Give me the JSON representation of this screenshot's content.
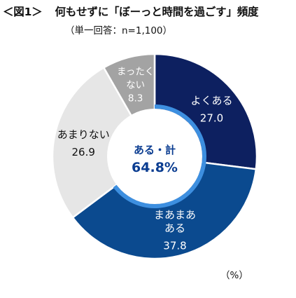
{
  "chart_data": {
    "type": "pie",
    "style": "donut",
    "title_figure": "＜図1＞",
    "title_main": "何もせずに「ぼーっと時間を過ごす」頻度",
    "subtitle": "（単一回答：n=1,100）",
    "unit": "（%）",
    "center_label_line1": "ある・計",
    "center_label_line2": "64.8%",
    "total_label": "ある・計",
    "total_value": 64.8,
    "slices": [
      {
        "label_lines": [
          "よくある"
        ],
        "value": 27.0,
        "value_text": "27.0",
        "color": "#0d2060",
        "text_color": "#ffffff"
      },
      {
        "label_lines": [
          "まあまあ",
          "ある"
        ],
        "value": 37.8,
        "value_text": "37.8",
        "color": "#0b4a8f",
        "text_color": "#ffffff"
      },
      {
        "label_lines": [
          "あまりない"
        ],
        "value": 26.9,
        "value_text": "26.9",
        "color": "#e6e6e6",
        "text_color": "#111111"
      },
      {
        "label_lines": [
          "まったく",
          "ない"
        ],
        "value": 8.3,
        "value_text": "8.3",
        "color": "#a3a3a3",
        "text_color": "#ffffff"
      }
    ],
    "ring_color": "#3d8fe0",
    "center_text_color": "#0b3d91"
  }
}
